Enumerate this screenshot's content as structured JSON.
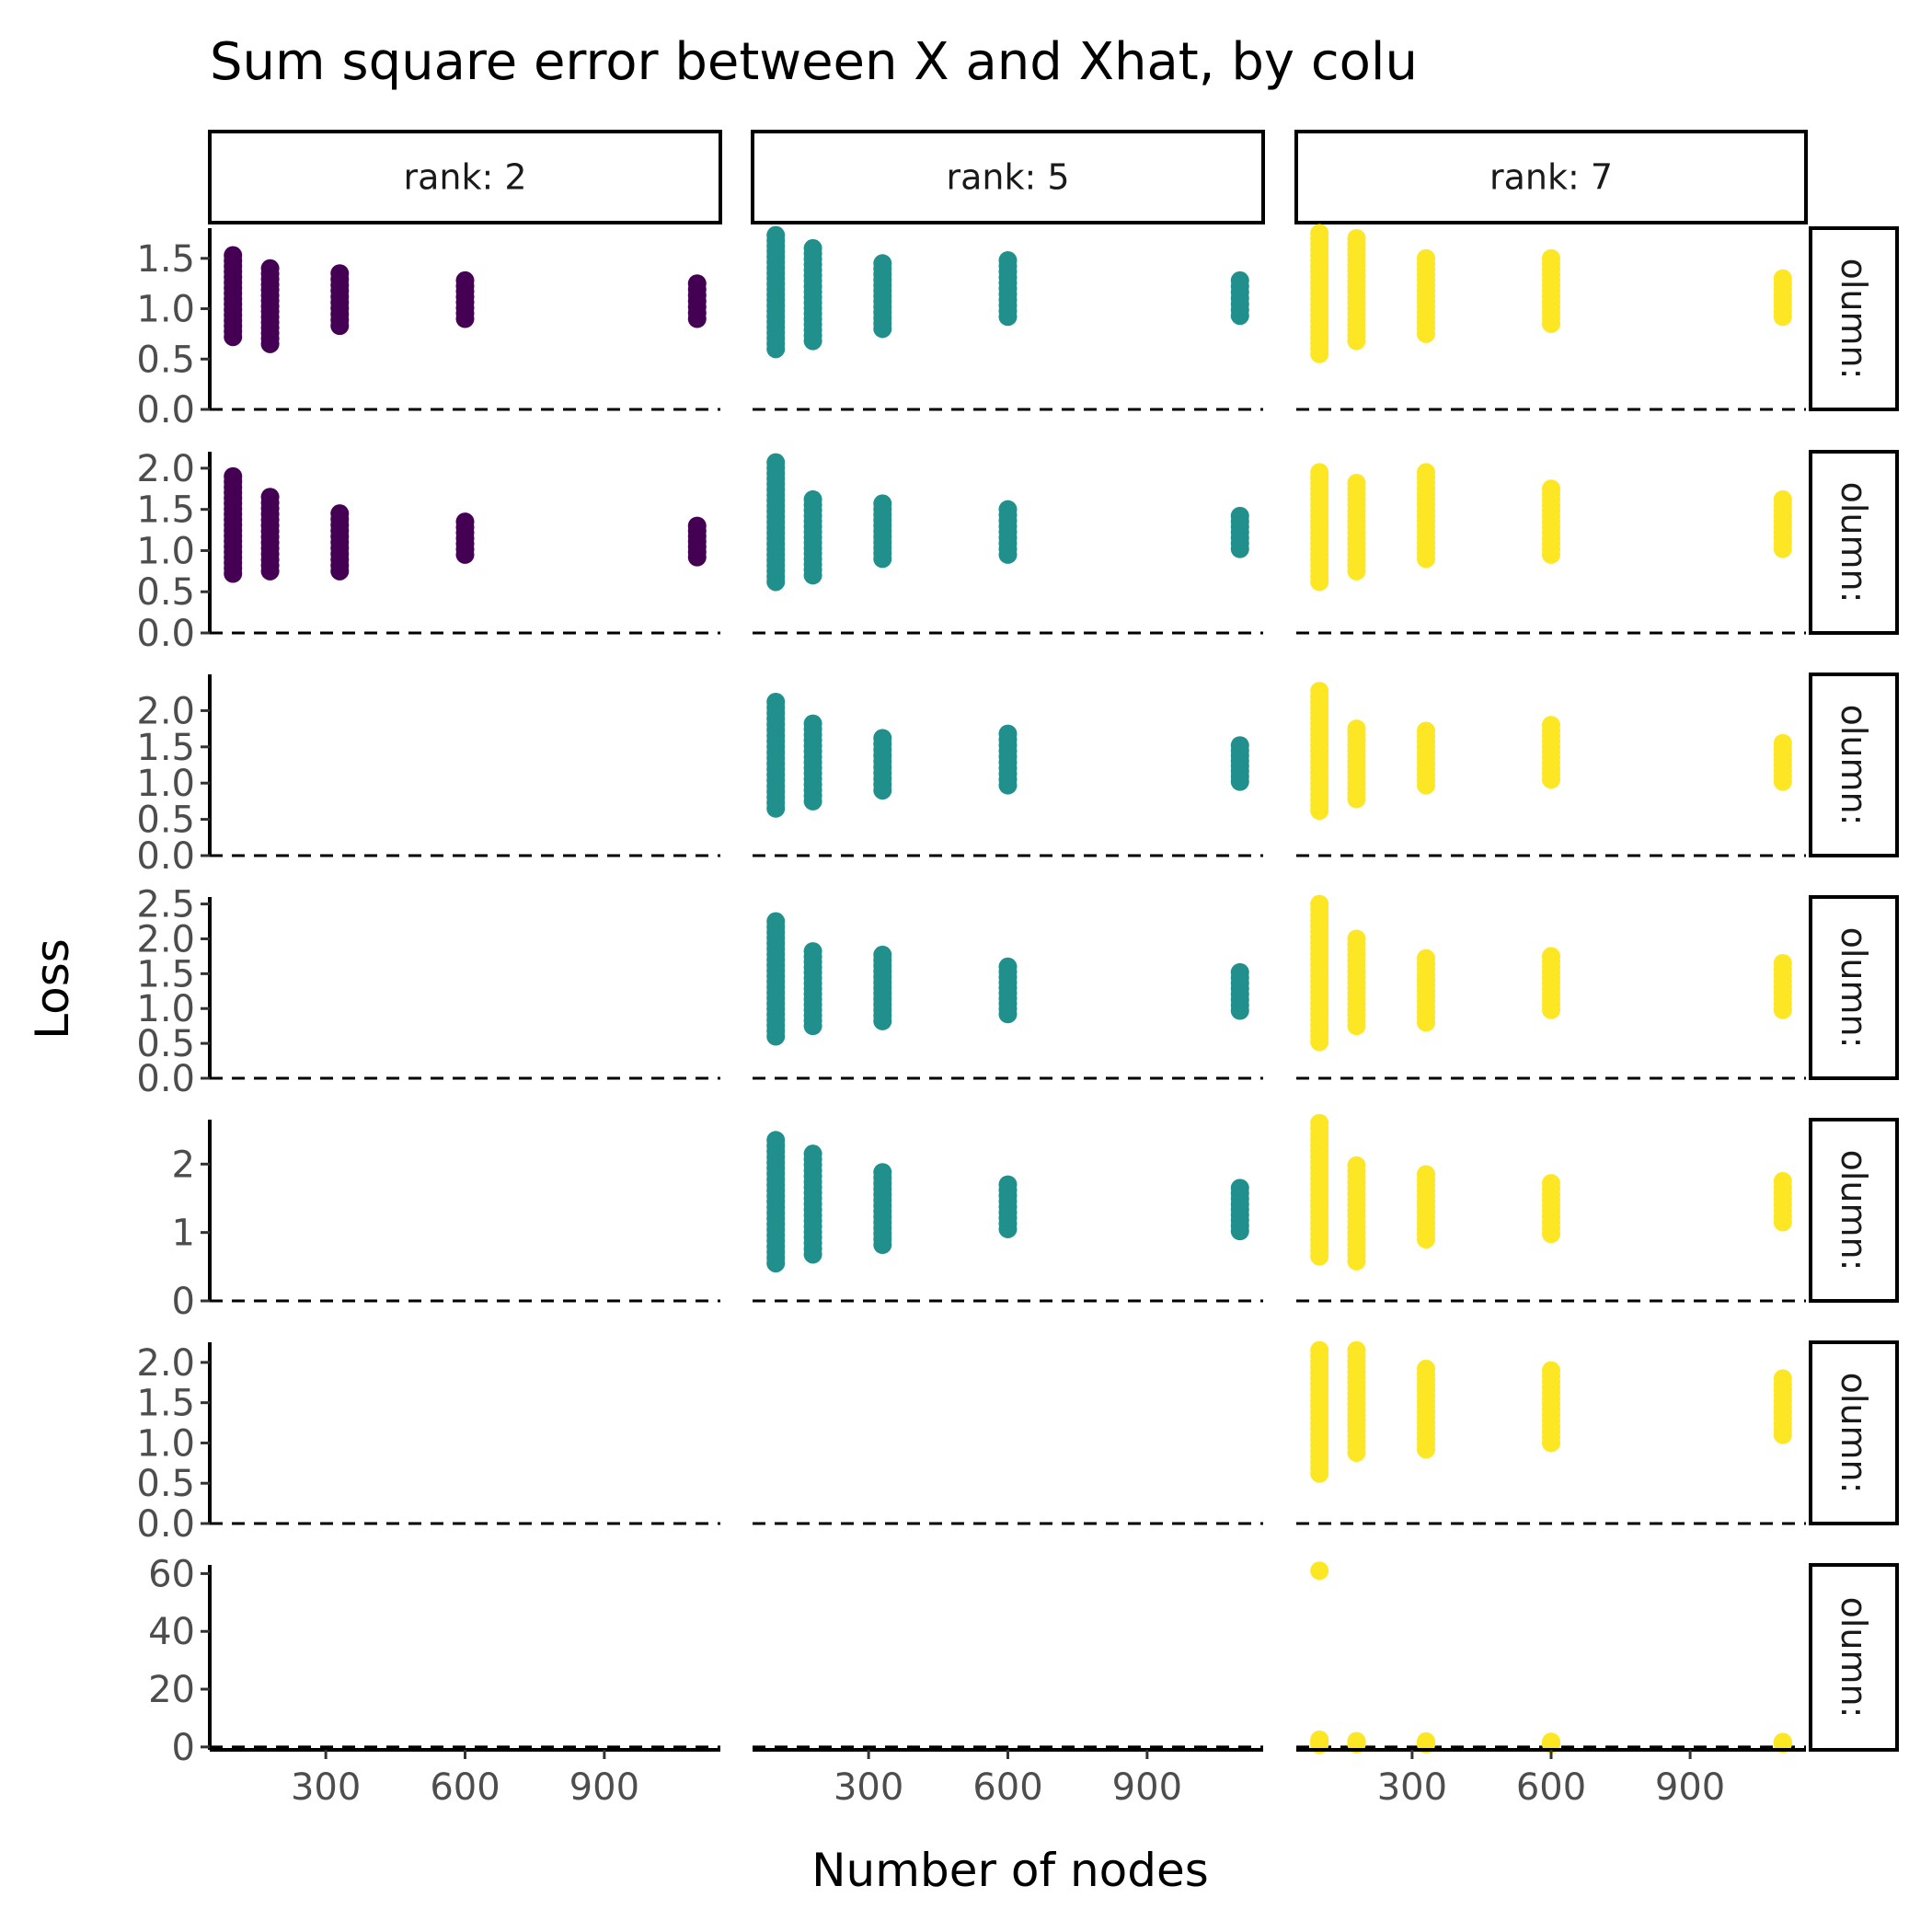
{
  "chart_data": {
    "type": "scatter",
    "title": "Sum square error between X and Xhat, by colu",
    "xlabel": "Number of nodes",
    "ylabel": "Loss",
    "facet_columns": [
      "rank: 2",
      "rank: 5",
      "rank: 7"
    ],
    "facet_row_label": "olumn:",
    "series_colors": {
      "rank: 2": "#440154",
      "rank: 5": "#21908C",
      "rank: 7": "#FDE725"
    },
    "x_ticks": [
      300,
      600,
      900
    ],
    "xlim": [
      50,
      1150
    ],
    "x_nodes": [
      100,
      180,
      330,
      600,
      1100
    ],
    "reference_line": {
      "y": 0,
      "style": "dashed"
    },
    "grid": false,
    "legend": "none",
    "rows": [
      {
        "ylim": [
          0,
          1.8
        ],
        "y_ticks": [
          "0.0",
          "0.5",
          "1.0",
          "1.5"
        ],
        "y_tick_values": [
          0,
          0.5,
          1.0,
          1.5
        ],
        "panels": [
          {
            "rank": 2,
            "ranges": [
              [
                0.72,
                1.53
              ],
              [
                0.65,
                1.4
              ],
              [
                0.83,
                1.35
              ],
              [
                0.9,
                1.28
              ],
              [
                0.9,
                1.25
              ]
            ]
          },
          {
            "rank": 5,
            "ranges": [
              [
                0.6,
                1.73
              ],
              [
                0.68,
                1.6
              ],
              [
                0.8,
                1.45
              ],
              [
                0.92,
                1.48
              ],
              [
                0.93,
                1.28
              ]
            ]
          },
          {
            "rank": 7,
            "ranges": [
              [
                0.55,
                1.75
              ],
              [
                0.68,
                1.7
              ],
              [
                0.75,
                1.5
              ],
              [
                0.85,
                1.5
              ],
              [
                0.92,
                1.3
              ]
            ]
          }
        ]
      },
      {
        "ylim": [
          0,
          2.2
        ],
        "y_ticks": [
          "0.0",
          "0.5",
          "1.0",
          "1.5",
          "2.0"
        ],
        "y_tick_values": [
          0,
          0.5,
          1.0,
          1.5,
          2.0
        ],
        "panels": [
          {
            "rank": 2,
            "ranges": [
              [
                0.72,
                1.9
              ],
              [
                0.75,
                1.65
              ],
              [
                0.75,
                1.45
              ],
              [
                0.95,
                1.35
              ],
              [
                0.92,
                1.3
              ]
            ]
          },
          {
            "rank": 5,
            "ranges": [
              [
                0.62,
                2.07
              ],
              [
                0.7,
                1.62
              ],
              [
                0.9,
                1.57
              ],
              [
                0.95,
                1.5
              ],
              [
                1.02,
                1.42
              ]
            ]
          },
          {
            "rank": 7,
            "ranges": [
              [
                0.62,
                1.95
              ],
              [
                0.75,
                1.82
              ],
              [
                0.9,
                1.95
              ],
              [
                0.95,
                1.75
              ],
              [
                1.02,
                1.62
              ]
            ]
          }
        ]
      },
      {
        "ylim": [
          0,
          2.5
        ],
        "y_ticks": [
          "0.0",
          "0.5",
          "1.0",
          "1.5",
          "2.0"
        ],
        "y_tick_values": [
          0,
          0.5,
          1.0,
          1.5,
          2.0
        ],
        "panels": [
          {
            "rank": 2,
            "ranges": []
          },
          {
            "rank": 5,
            "ranges": [
              [
                0.65,
                2.12
              ],
              [
                0.75,
                1.82
              ],
              [
                0.9,
                1.62
              ],
              [
                0.97,
                1.68
              ],
              [
                1.02,
                1.52
              ]
            ]
          },
          {
            "rank": 7,
            "ranges": [
              [
                0.62,
                2.27
              ],
              [
                0.78,
                1.75
              ],
              [
                0.97,
                1.72
              ],
              [
                1.05,
                1.8
              ],
              [
                1.02,
                1.55
              ]
            ]
          }
        ]
      },
      {
        "ylim": [
          0,
          2.6
        ],
        "y_ticks": [
          "0.0",
          "0.5",
          "1.0",
          "1.5",
          "2.0",
          "2.5"
        ],
        "y_tick_values": [
          0,
          0.5,
          1.0,
          1.5,
          2.0,
          2.5
        ],
        "panels": [
          {
            "rank": 2,
            "ranges": []
          },
          {
            "rank": 5,
            "ranges": [
              [
                0.6,
                2.25
              ],
              [
                0.75,
                1.82
              ],
              [
                0.82,
                1.77
              ],
              [
                0.92,
                1.6
              ],
              [
                0.97,
                1.52
              ]
            ]
          },
          {
            "rank": 7,
            "ranges": [
              [
                0.52,
                2.5
              ],
              [
                0.75,
                2.0
              ],
              [
                0.8,
                1.72
              ],
              [
                0.98,
                1.75
              ],
              [
                0.98,
                1.65
              ]
            ]
          }
        ]
      },
      {
        "ylim": [
          0,
          2.65
        ],
        "y_ticks": [
          "0",
          "1",
          "2"
        ],
        "y_tick_values": [
          0,
          1,
          2
        ],
        "panels": [
          {
            "rank": 2,
            "ranges": []
          },
          {
            "rank": 5,
            "ranges": [
              [
                0.55,
                2.35
              ],
              [
                0.68,
                2.15
              ],
              [
                0.82,
                1.88
              ],
              [
                1.05,
                1.7
              ],
              [
                1.02,
                1.65
              ]
            ]
          },
          {
            "rank": 7,
            "ranges": [
              [
                0.65,
                2.6
              ],
              [
                0.58,
                1.98
              ],
              [
                0.9,
                1.85
              ],
              [
                0.98,
                1.72
              ],
              [
                1.15,
                1.75
              ]
            ]
          }
        ]
      },
      {
        "ylim": [
          0,
          2.25
        ],
        "y_ticks": [
          "0.0",
          "0.5",
          "1.0",
          "1.5",
          "2.0"
        ],
        "y_tick_values": [
          0,
          0.5,
          1.0,
          1.5,
          2.0
        ],
        "panels": [
          {
            "rank": 2,
            "ranges": []
          },
          {
            "rank": 5,
            "ranges": []
          },
          {
            "rank": 7,
            "ranges": [
              [
                0.62,
                2.15
              ],
              [
                0.88,
                2.15
              ],
              [
                0.92,
                1.92
              ],
              [
                1.0,
                1.9
              ],
              [
                1.1,
                1.8
              ]
            ]
          }
        ]
      },
      {
        "ylim": [
          -1,
          63
        ],
        "y_ticks": [
          "0",
          "20",
          "40",
          "60"
        ],
        "y_tick_values": [
          0,
          20,
          40,
          60
        ],
        "panels": [
          {
            "rank": 2,
            "ranges": []
          },
          {
            "rank": 5,
            "ranges": []
          },
          {
            "rank": 7,
            "ranges": [
              [
                0.7,
                2.5
              ],
              [
                0.9,
                2.0
              ],
              [
                0.9,
                1.9
              ],
              [
                1.0,
                1.8
              ],
              [
                1.1,
                1.7
              ]
            ],
            "outliers": [
              {
                "x": 100,
                "y": 61
              }
            ]
          }
        ]
      }
    ]
  }
}
